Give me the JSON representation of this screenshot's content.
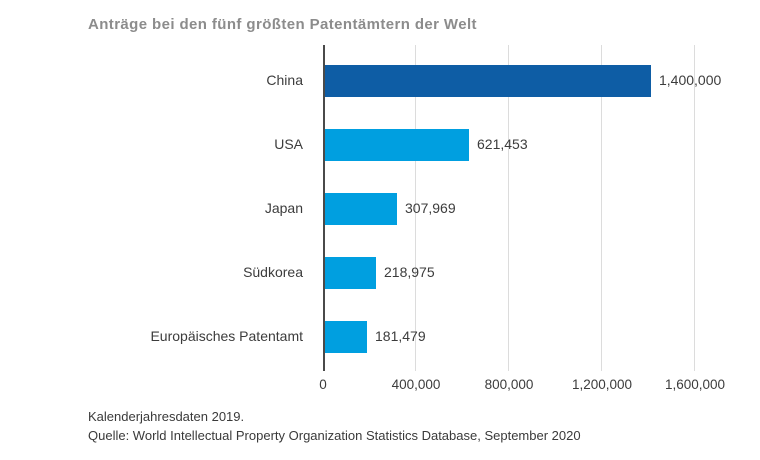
{
  "title": "Anträge bei den fünf größten Patentämtern der Welt",
  "footer": {
    "line1": "Kalenderjahresdaten 2019.",
    "line2": "Quelle: World Intellectual Property Organization Statistics Database, September 2020"
  },
  "colors": {
    "bar_primary": "#0e5da5",
    "bar_secondary": "#009fe0",
    "title_text": "#8c8c8c",
    "label_text": "#3c3c3c",
    "gridline": "#dcdcdc",
    "axis_line": "#4a4a4a",
    "background": "#ffffff"
  },
  "chart_data": {
    "type": "bar",
    "orientation": "horizontal",
    "title": "Anträge bei den fünf größten Patentämtern der Welt",
    "categories": [
      "China",
      "USA",
      "Japan",
      "Südkorea",
      "Europäisches Patentamt"
    ],
    "values": [
      1400000,
      621453,
      307969,
      218975,
      181479
    ],
    "value_labels": [
      "1,400,000",
      "621,453",
      "307,969",
      "218,975",
      "181,479"
    ],
    "bar_colors": [
      "#0e5da5",
      "#009fe0",
      "#009fe0",
      "#009fe0",
      "#009fe0"
    ],
    "xlabel": "",
    "ylabel": "",
    "xlim": [
      0,
      1600000
    ],
    "x_ticks": [
      0,
      400000,
      800000,
      1200000,
      1600000
    ],
    "x_tick_labels": [
      "0",
      "400,000",
      "800,000",
      "1,200,000",
      "1,600,000"
    ],
    "grid": "vertical-gridlines-on",
    "legend": "none",
    "notes": [
      "Kalenderjahresdaten 2019.",
      "Quelle: World Intellectual Property Organization Statistics Database, September 2020"
    ]
  }
}
